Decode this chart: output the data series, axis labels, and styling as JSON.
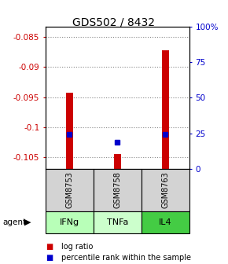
{
  "title": "GDS502 / 8432",
  "samples": [
    "GSM8753",
    "GSM8758",
    "GSM8763"
  ],
  "agents": [
    "IFNg",
    "TNFa",
    "IL4"
  ],
  "agent_colors": [
    "#b8ffb8",
    "#ccffcc",
    "#44cc44"
  ],
  "log_ratios": [
    -0.0943,
    -0.1045,
    -0.0872
  ],
  "percentile_ranks": [
    24.5,
    18.5,
    24.5
  ],
  "ylim_left": [
    -0.107,
    -0.0832
  ],
  "yticks_left": [
    -0.085,
    -0.09,
    -0.095,
    -0.1,
    -0.105
  ],
  "left_labels": [
    "-0.085",
    "-0.09",
    "-0.095",
    "-0.1",
    "-0.105"
  ],
  "yticks_right": [
    0,
    25,
    50,
    75,
    100
  ],
  "right_labels": [
    "0",
    "25",
    "50",
    "75",
    "100%"
  ],
  "yright_min": 0,
  "yright_max": 100,
  "bar_color": "#cc0000",
  "dot_color": "#0000cc",
  "grid_color": "#888888",
  "plot_bg": "#ffffff",
  "left_tick_color": "#cc0000",
  "right_tick_color": "#0000cc",
  "bar_bottom": -0.107
}
